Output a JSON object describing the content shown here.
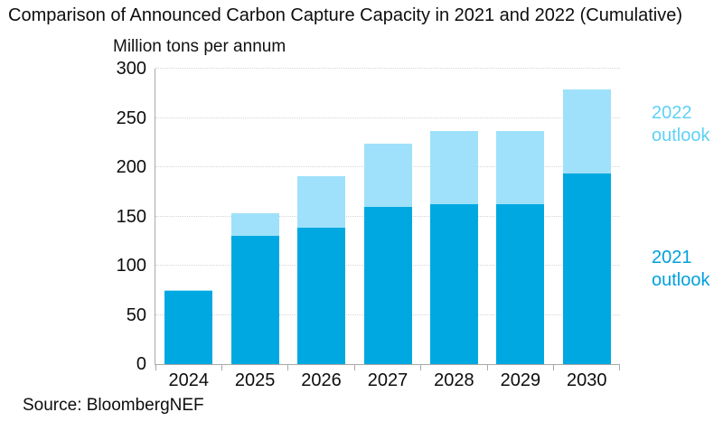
{
  "title": "Comparison of Announced Carbon Capture Capacity in 2021 and 2022 (Cumulative)",
  "source": "Source: BloombergNEF",
  "chart_data": {
    "type": "bar",
    "stacked": true,
    "title": "Comparison of Announced Carbon Capture Capacity in 2021 and 2022 (Cumulative)",
    "ylabel": "Million tons per annum",
    "xlabel": "",
    "categories": [
      "2024",
      "2025",
      "2026",
      "2027",
      "2028",
      "2029",
      "2030"
    ],
    "series": [
      {
        "name": "2021 outlook",
        "color": "#00A8E1",
        "label_color": "#00A0DC",
        "values": [
          74,
          130,
          139,
          160,
          162,
          162,
          194
        ]
      },
      {
        "name": "2022 outlook",
        "color": "#9FE1FA",
        "label_color": "#5ED1F4",
        "values": [
          1,
          23,
          52,
          64,
          75,
          75,
          85
        ]
      }
    ],
    "stack_totals": [
      75,
      153,
      191,
      224,
      237,
      237,
      279
    ],
    "ylim": [
      0,
      300
    ],
    "yticks": [
      0,
      50,
      100,
      150,
      200,
      250,
      300
    ],
    "grid": "horizontal-dotted",
    "legend_position": "right"
  },
  "colors": {
    "grid": "#d4d4d4",
    "axis": "#a9a9a9",
    "text": "#000000"
  }
}
